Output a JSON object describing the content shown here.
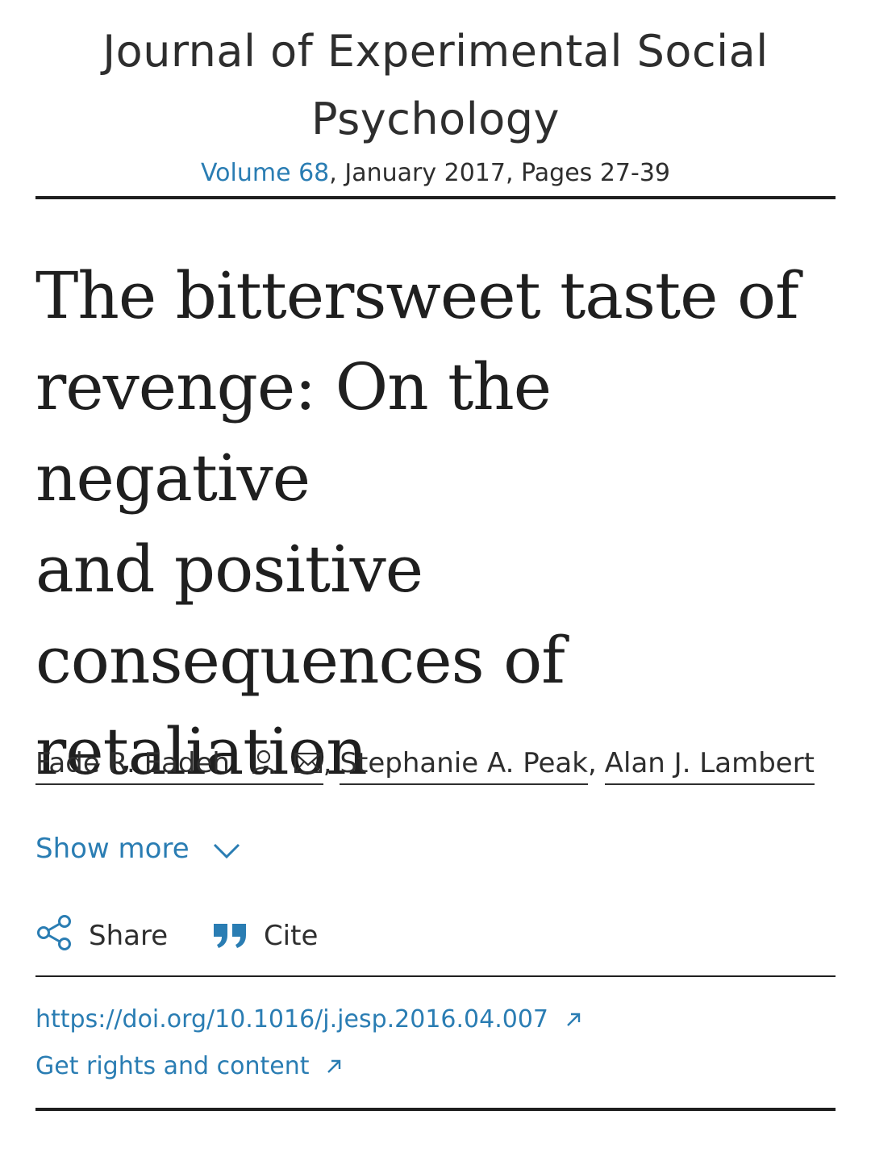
{
  "journal": {
    "title_line1": "Journal of Experimental Social",
    "title_line2": "Psychology"
  },
  "issue": {
    "volume": "Volume 68",
    "details": ", January 2017, Pages 27-39"
  },
  "article": {
    "title_lines": [
      "The bittersweet taste of",
      "revenge: On the negative",
      "and positive",
      "consequences of",
      "retaliation"
    ]
  },
  "authors": {
    "list": [
      "Fade R. Eadeh",
      "Stephanie A. Peak",
      "Alan J. Lambert"
    ],
    "separator": ","
  },
  "show_more": {
    "label": "Show more",
    "icon": "chevron-down-icon"
  },
  "actions": {
    "share_label": "Share",
    "cite_label": "Cite",
    "share_icon": "share-icon",
    "cite_icon": "quote-icon"
  },
  "links": {
    "doi": "https://doi.org/10.1016/j.jesp.2016.04.007",
    "rights": "Get rights and content"
  },
  "colors": {
    "link": "#2a7db3",
    "text": "#2e2e2e",
    "rule": "#1f1f1f"
  }
}
